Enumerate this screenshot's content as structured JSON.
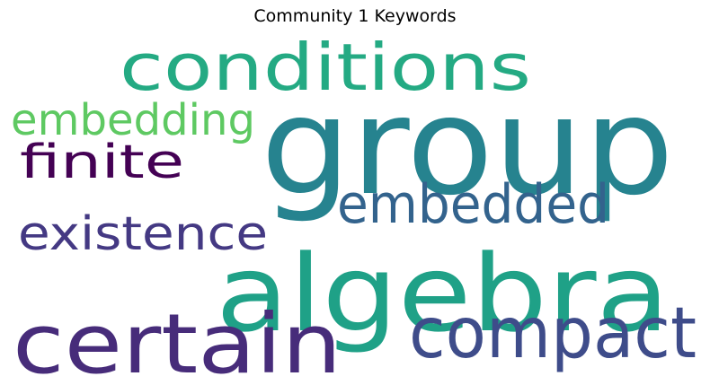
{
  "title": "Community 1 Keywords",
  "words": [
    {
      "text": "group",
      "color": "#26838f"
    },
    {
      "text": "algebra",
      "color": "#1fa187"
    },
    {
      "text": "conditions",
      "color": "#24aa83"
    },
    {
      "text": "certain",
      "color": "#472c7a"
    },
    {
      "text": "compact",
      "color": "#3e4c8a"
    },
    {
      "text": "embedded",
      "color": "#33638d"
    },
    {
      "text": "embedding",
      "color": "#5ec962"
    },
    {
      "text": "existence",
      "color": "#443983"
    },
    {
      "text": "finite",
      "color": "#440154"
    }
  ]
}
